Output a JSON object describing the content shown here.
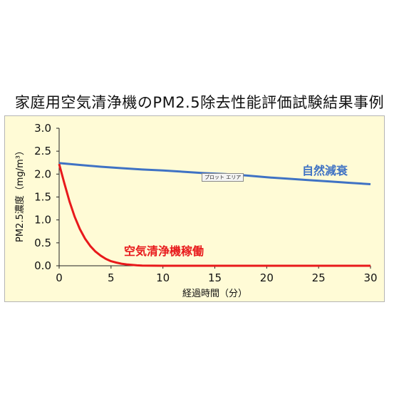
{
  "title": "家庭用空気清浄機のPM2.5除去性能評価試験結果事例",
  "plot_area_tooltip": "プロット エリア",
  "colors": {
    "background": "#fffbd6",
    "natural": "#3f72c4",
    "purifier": "#e8191b"
  },
  "chart_data": {
    "type": "line",
    "title": "家庭用空気清浄機のPM2.5除去性能評価試験結果事例",
    "xlabel": "経過時間（分）",
    "ylabel": "PM2.5濃度（mg/m³）",
    "xlim": [
      0,
      30
    ],
    "ylim": [
      0,
      3.0
    ],
    "x_ticks": [
      "0",
      "5",
      "10",
      "15",
      "20",
      "25",
      "30"
    ],
    "y_ticks": [
      "0.0",
      "0.5",
      "1.0",
      "1.5",
      "2.0",
      "2.5",
      "3.0"
    ],
    "grid": false,
    "series": [
      {
        "name": "自然減衰",
        "color": "#3f72c4",
        "x": [
          0,
          2,
          4,
          6,
          8,
          10,
          12,
          14,
          16,
          18,
          20,
          22,
          24,
          26,
          28,
          30
        ],
        "y": [
          2.24,
          2.2,
          2.16,
          2.13,
          2.1,
          2.08,
          2.05,
          2.02,
          2.0,
          1.97,
          1.93,
          1.9,
          1.87,
          1.84,
          1.81,
          1.78
        ]
      },
      {
        "name": "空気清浄機稼働",
        "color": "#e8191b",
        "x": [
          0,
          0.5,
          1,
          1.5,
          2,
          2.5,
          3,
          3.5,
          4,
          4.5,
          5,
          5.5,
          6,
          6.5,
          7,
          7.5,
          8,
          10,
          15,
          20,
          25,
          30
        ],
        "y": [
          2.22,
          1.8,
          1.4,
          1.07,
          0.8,
          0.59,
          0.43,
          0.31,
          0.22,
          0.15,
          0.1,
          0.07,
          0.045,
          0.03,
          0.018,
          0.01,
          0.005,
          0.0,
          0.0,
          0.0,
          0.0,
          0.0
        ]
      }
    ]
  }
}
